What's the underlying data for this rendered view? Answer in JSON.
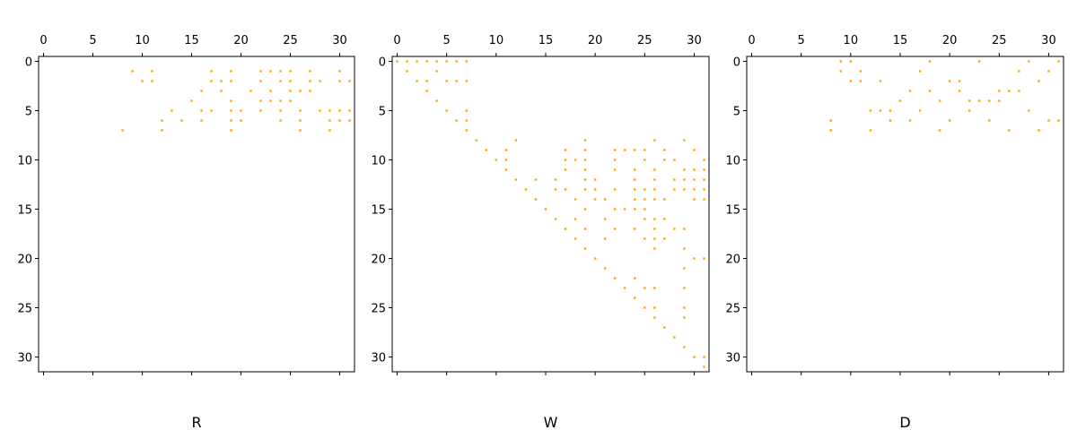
{
  "chart_data": [
    {
      "type": "scatter",
      "xlabel": "R",
      "color": "#ffa500",
      "x_axis_position": "top",
      "xlim": [
        -0.5,
        31.5
      ],
      "ylim": [
        31.5,
        -0.5
      ],
      "xticks": [
        0,
        5,
        10,
        15,
        20,
        25,
        30
      ],
      "yticks": [
        0,
        5,
        10,
        15,
        20,
        25,
        30
      ],
      "x": [
        9,
        11,
        17,
        19,
        22,
        23,
        24,
        25,
        27,
        30,
        10,
        11,
        17,
        18,
        19,
        22,
        24,
        25,
        27,
        28,
        30,
        31,
        16,
        18,
        21,
        23,
        25,
        26,
        27,
        15,
        19,
        22,
        23,
        24,
        25,
        13,
        16,
        17,
        19,
        20,
        22,
        24,
        26,
        28,
        29,
        30,
        31,
        12,
        14,
        16,
        19,
        20,
        24,
        26,
        29,
        30,
        31,
        8,
        12,
        19,
        26,
        29
      ],
      "y": [
        1,
        1,
        1,
        1,
        1,
        1,
        1,
        1,
        1,
        1,
        2,
        2,
        2,
        2,
        2,
        2,
        2,
        2,
        2,
        2,
        2,
        2,
        3,
        3,
        3,
        3,
        3,
        3,
        3,
        4,
        4,
        4,
        4,
        4,
        4,
        5,
        5,
        5,
        5,
        5,
        5,
        5,
        5,
        5,
        5,
        5,
        5,
        6,
        6,
        6,
        6,
        6,
        6,
        6,
        6,
        6,
        6,
        7,
        7,
        7,
        7,
        7
      ]
    },
    {
      "type": "scatter",
      "xlabel": "W",
      "color": "#ffa500",
      "x_axis_position": "top",
      "xlim": [
        -0.5,
        31.5
      ],
      "ylim": [
        31.5,
        -0.5
      ],
      "xticks": [
        0,
        5,
        10,
        15,
        20,
        25,
        30
      ],
      "yticks": [
        0,
        5,
        10,
        15,
        20,
        25,
        30
      ],
      "x": [
        0,
        1,
        2,
        3,
        4,
        5,
        6,
        7,
        1,
        4,
        2,
        3,
        5,
        6,
        7,
        3,
        4,
        5,
        7,
        6,
        7,
        7,
        8,
        12,
        19,
        26,
        29,
        9,
        11,
        17,
        19,
        22,
        23,
        24,
        25,
        27,
        30,
        10,
        11,
        17,
        18,
        19,
        22,
        25,
        27,
        28,
        31,
        11,
        17,
        19,
        22,
        24,
        26,
        29,
        30,
        31,
        12,
        14,
        16,
        19,
        20,
        24,
        26,
        28,
        29,
        30,
        31,
        13,
        16,
        17,
        19,
        20,
        22,
        24,
        25,
        26,
        28,
        29,
        30,
        31,
        14,
        18,
        20,
        21,
        24,
        25,
        26,
        27,
        30,
        31,
        15,
        19,
        22,
        23,
        24,
        25,
        16,
        18,
        21,
        25,
        26,
        27,
        17,
        19,
        22,
        24,
        26,
        28,
        29,
        18,
        21,
        25,
        26,
        27,
        19,
        26,
        29,
        20,
        30,
        31,
        21,
        29,
        22,
        24,
        23,
        25,
        26,
        29,
        24,
        25,
        26,
        29,
        26,
        29,
        27,
        28,
        29,
        30,
        31,
        31
      ],
      "y": [
        0,
        0,
        0,
        0,
        0,
        0,
        0,
        0,
        1,
        1,
        2,
        2,
        2,
        2,
        2,
        3,
        4,
        5,
        5,
        6,
        6,
        7,
        8,
        8,
        8,
        8,
        8,
        9,
        9,
        9,
        9,
        9,
        9,
        9,
        9,
        9,
        9,
        10,
        10,
        10,
        10,
        10,
        10,
        10,
        10,
        10,
        10,
        11,
        11,
        11,
        11,
        11,
        11,
        11,
        11,
        11,
        12,
        12,
        12,
        12,
        12,
        12,
        12,
        12,
        12,
        12,
        12,
        13,
        13,
        13,
        13,
        13,
        13,
        13,
        13,
        13,
        13,
        13,
        13,
        13,
        14,
        14,
        14,
        14,
        14,
        14,
        14,
        14,
        14,
        14,
        15,
        15,
        15,
        15,
        15,
        15,
        16,
        16,
        16,
        16,
        16,
        16,
        17,
        17,
        17,
        17,
        17,
        17,
        17,
        18,
        18,
        18,
        18,
        18,
        19,
        19,
        19,
        20,
        20,
        20,
        21,
        21,
        22,
        22,
        23,
        23,
        23,
        23,
        24,
        25,
        25,
        25,
        26,
        26,
        27,
        28,
        29,
        30,
        30,
        31
      ]
    },
    {
      "type": "scatter",
      "xlabel": "D",
      "color": "#ffa500",
      "x_axis_position": "top",
      "xlim": [
        -0.5,
        31.5
      ],
      "ylim": [
        31.5,
        -0.5
      ],
      "xticks": [
        0,
        5,
        10,
        15,
        20,
        25,
        30
      ],
      "yticks": [
        0,
        5,
        10,
        15,
        20,
        25,
        30
      ],
      "x": [
        9,
        10,
        18,
        23,
        28,
        31,
        9,
        11,
        17,
        27,
        30,
        10,
        11,
        13,
        20,
        21,
        29,
        16,
        18,
        21,
        25,
        26,
        27,
        15,
        19,
        22,
        23,
        24,
        25,
        12,
        13,
        14,
        17,
        22,
        28,
        8,
        14,
        16,
        20,
        24,
        30,
        31,
        8,
        12,
        19,
        26,
        29
      ],
      "y": [
        0,
        0,
        0,
        0,
        0,
        0,
        1,
        1,
        1,
        1,
        1,
        2,
        2,
        2,
        2,
        2,
        2,
        3,
        3,
        3,
        3,
        3,
        3,
        4,
        4,
        4,
        4,
        4,
        4,
        5,
        5,
        5,
        5,
        5,
        5,
        6,
        6,
        6,
        6,
        6,
        6,
        6,
        7,
        7,
        7,
        7,
        7
      ]
    }
  ]
}
